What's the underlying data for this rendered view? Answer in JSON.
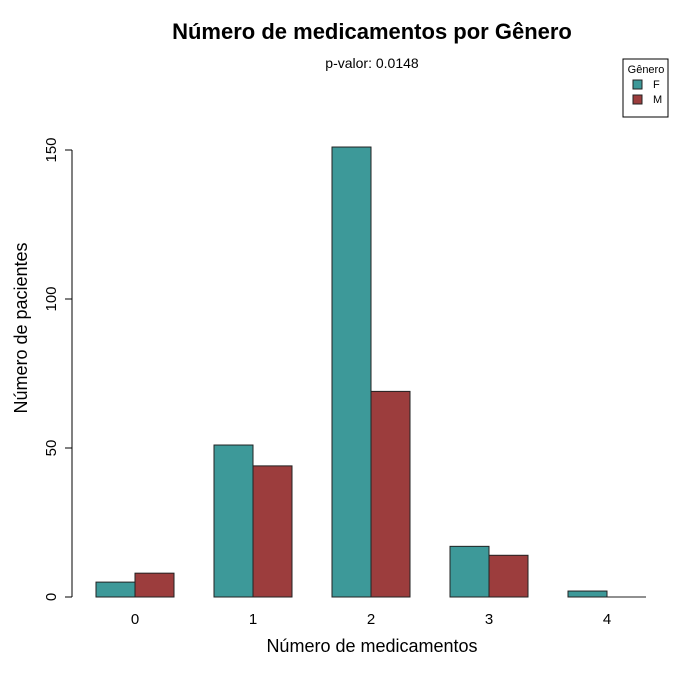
{
  "chart_data": {
    "type": "bar",
    "title": "Número de medicamentos por Gênero",
    "subtitle": "p-valor: 0.0148",
    "xlabel": "Número de medicamentos",
    "ylabel": "Número de pacientes",
    "categories": [
      "0",
      "1",
      "2",
      "3",
      "4"
    ],
    "series": [
      {
        "name": "F",
        "values": [
          5,
          51,
          151,
          17,
          2
        ],
        "color": "#3d9999"
      },
      {
        "name": "M",
        "values": [
          8,
          44,
          69,
          14,
          0
        ],
        "color": "#9c3d3d"
      }
    ],
    "ylim": [
      0,
      160
    ],
    "yticks": [
      0,
      50,
      100,
      150
    ],
    "grid": false,
    "legend": {
      "title": "Gênero",
      "placement": "top-right"
    }
  }
}
